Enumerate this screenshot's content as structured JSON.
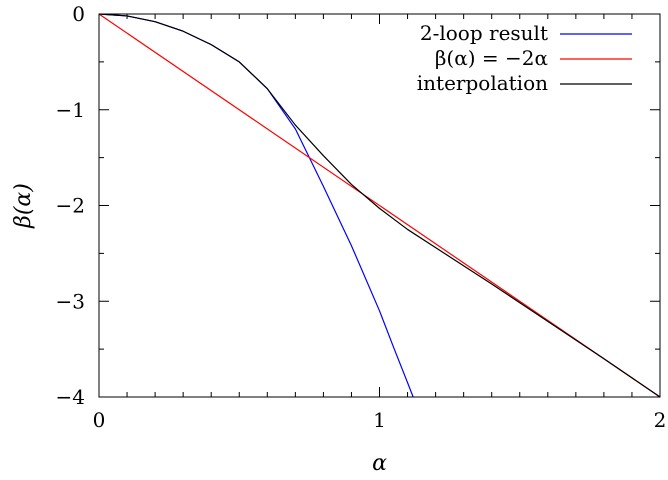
{
  "chart_data": {
    "type": "line",
    "xlabel": "α",
    "ylabel": "β(α)",
    "xlim": [
      0,
      2
    ],
    "ylim": [
      -4,
      0
    ],
    "x_ticks": [
      0,
      1,
      2
    ],
    "x_tick_labels": [
      "0",
      "1",
      "2"
    ],
    "y_ticks": [
      0,
      -1,
      -2,
      -3,
      -4
    ],
    "y_tick_labels": [
      "0",
      "−1",
      "−2",
      "−3",
      "−4"
    ],
    "grid": false,
    "legend_position": "top-right",
    "series": [
      {
        "name": "2-loop result",
        "color": "#0000ff",
        "x": [
          0,
          0.1,
          0.2,
          0.3,
          0.4,
          0.5,
          0.6,
          0.7,
          0.75,
          0.8,
          0.9,
          1.0,
          1.05,
          1.1,
          1.12
        ],
        "y": [
          0,
          -0.02,
          -0.08,
          -0.18,
          -0.32,
          -0.5,
          -0.78,
          -1.2,
          -1.5,
          -1.8,
          -2.42,
          -3.1,
          -3.48,
          -3.85,
          -4.0
        ]
      },
      {
        "name": "β(α) = −2α",
        "color": "#ff0000",
        "x": [
          0,
          2
        ],
        "y": [
          0,
          -4
        ]
      },
      {
        "name": "interpolation",
        "color": "#000000",
        "x": [
          0,
          0.1,
          0.2,
          0.3,
          0.4,
          0.5,
          0.6,
          0.7,
          0.8,
          0.9,
          1.0,
          1.1,
          1.2,
          1.4,
          1.6,
          1.8,
          2.0
        ],
        "y": [
          0,
          -0.02,
          -0.08,
          -0.18,
          -0.32,
          -0.5,
          -0.78,
          -1.16,
          -1.48,
          -1.78,
          -2.03,
          -2.25,
          -2.44,
          -2.82,
          -3.21,
          -3.6,
          -4.0
        ]
      }
    ]
  }
}
